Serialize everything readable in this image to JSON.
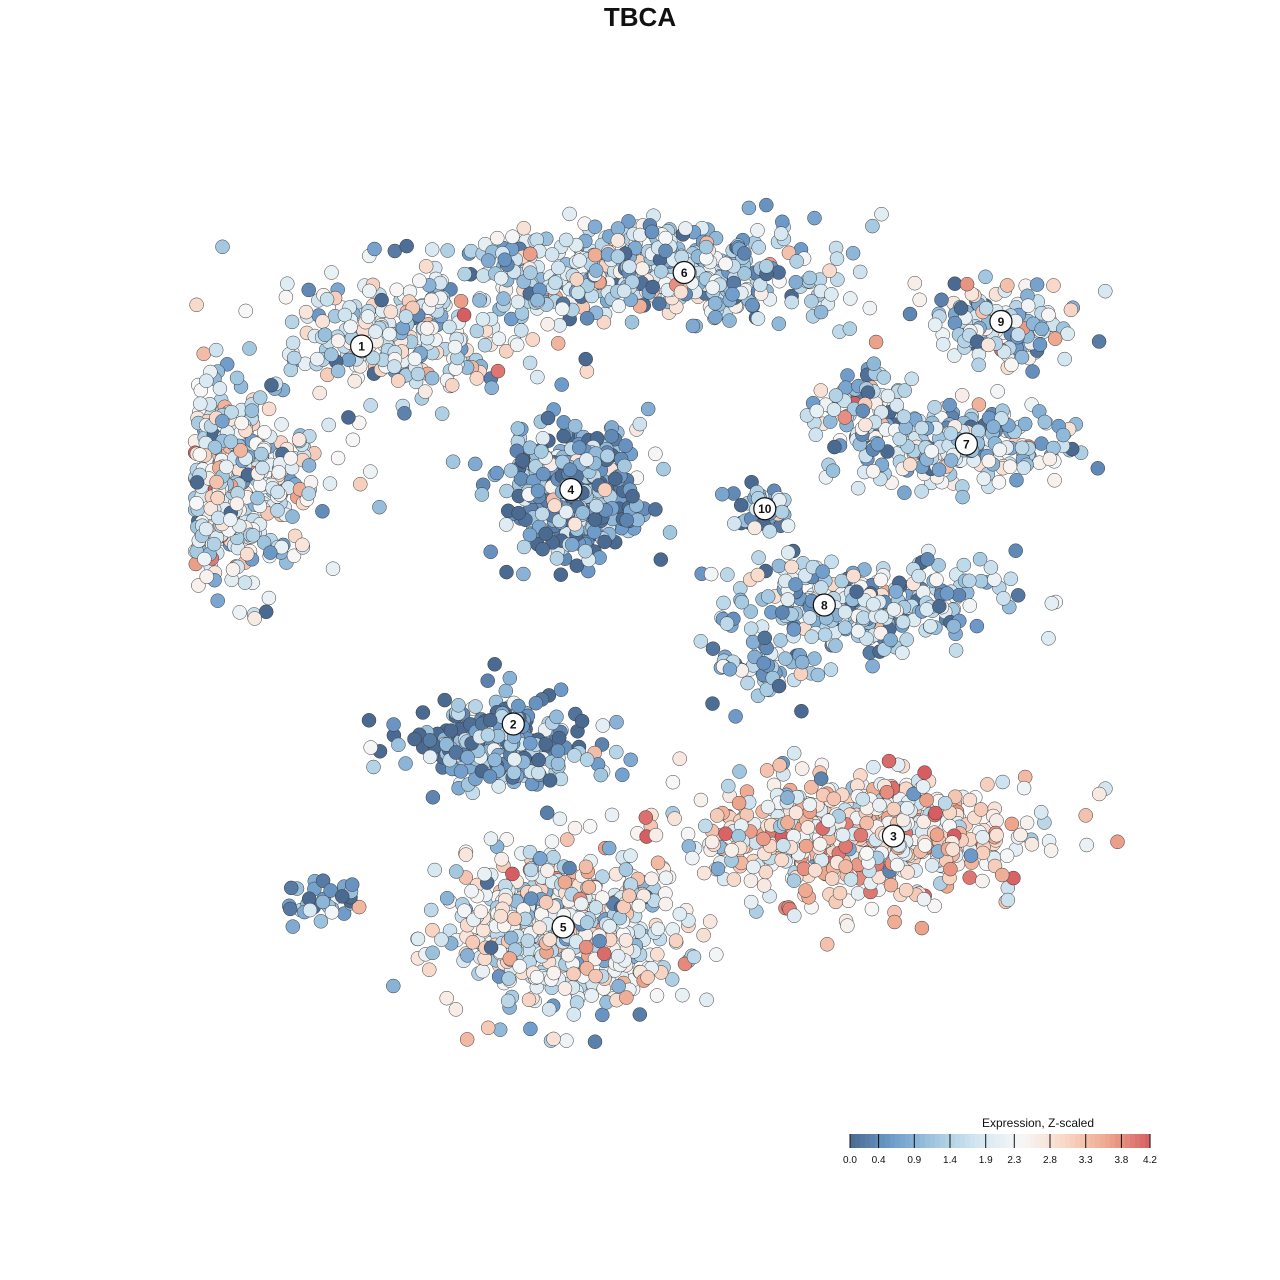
{
  "chart_data": {
    "type": "scatter",
    "title": "TBCA",
    "xlabel": "",
    "ylabel": "",
    "grid": false,
    "axes_visible": false,
    "color_scale": {
      "title": "Expression, Z-scaled",
      "min": 0.0,
      "max": 4.2,
      "ticks": [
        0.0,
        0.4,
        0.9,
        1.4,
        1.9,
        2.3,
        2.8,
        3.3,
        3.8,
        4.2
      ],
      "tick_labels": [
        "0.0",
        "0.4",
        "0.9",
        "1.4",
        "1.9",
        "2.3",
        "2.8",
        "3.3",
        "3.8",
        "4.2"
      ],
      "colors": [
        "#4a6a91",
        "#6f9ccb",
        "#a3c8e0",
        "#d5e7f1",
        "#f7f7f7",
        "#f8d8c8",
        "#eea88f",
        "#d65e63"
      ],
      "legend_placement": "bottom-right"
    },
    "clusters": [
      {
        "label": "1",
        "x": -14.5,
        "y": 15.2,
        "mean_expression": 1.9
      },
      {
        "label": "2",
        "x": -6.6,
        "y": -6.4,
        "mean_expression": 0.8
      },
      {
        "label": "3",
        "x": 13.2,
        "y": -12.8,
        "mean_expression": 2.6
      },
      {
        "label": "4",
        "x": -3.6,
        "y": 7.0,
        "mean_expression": 0.7
      },
      {
        "label": "5",
        "x": -4.0,
        "y": -18.0,
        "mean_expression": 2.1
      },
      {
        "label": "6",
        "x": 2.3,
        "y": 19.4,
        "mean_expression": 1.5
      },
      {
        "label": "7",
        "x": 17.0,
        "y": 9.6,
        "mean_expression": 1.6
      },
      {
        "label": "8",
        "x": 9.6,
        "y": 0.4,
        "mean_expression": 1.3
      },
      {
        "label": "9",
        "x": 18.8,
        "y": 16.6,
        "mean_expression": 1.7
      },
      {
        "label": "10",
        "x": 6.5,
        "y": 5.9,
        "mean_expression": 1.0
      }
    ]
  },
  "colors": {
    "point_stroke": "#3a3a3a",
    "label_fill": "#ffffff"
  }
}
